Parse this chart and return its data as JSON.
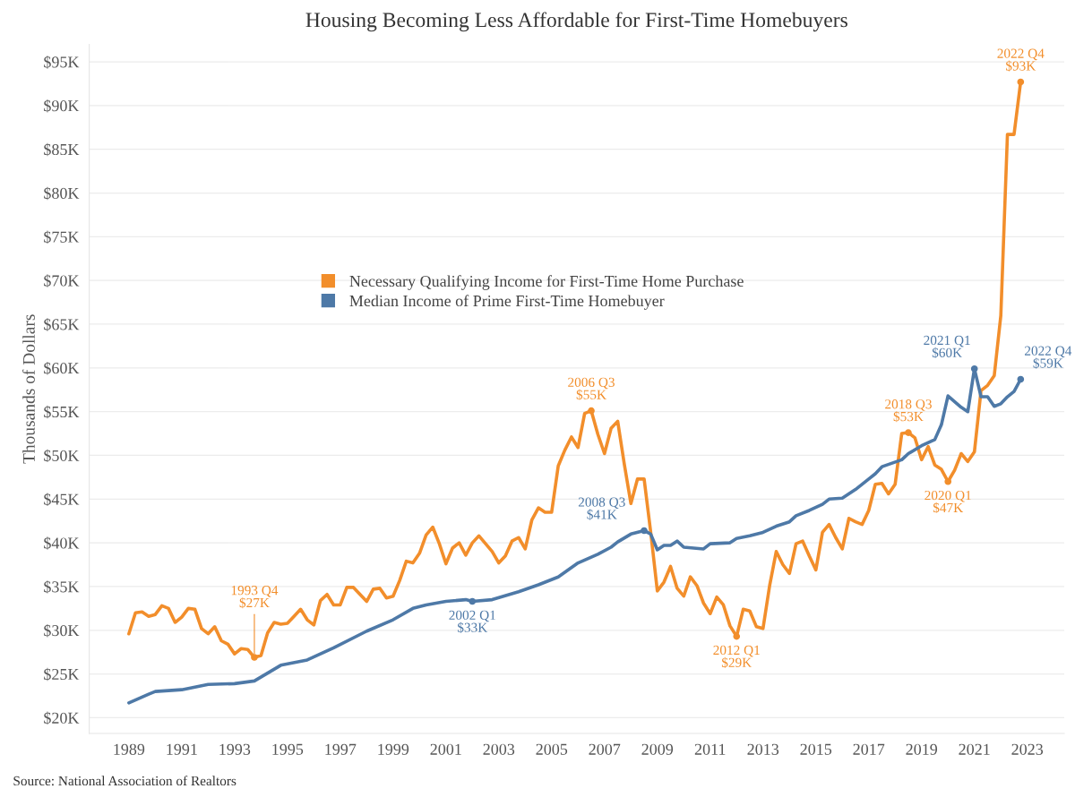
{
  "chart_data": {
    "type": "line",
    "title": "Housing Becoming Less Affordable for First-Time Homebuyers",
    "ylabel": "Thousands of Dollars",
    "series": [
      {
        "name": "Necessary Qualifying Income for First-Time Home Purchase",
        "color": "#f28e2b",
        "x": [
          1989,
          1989.25,
          1989.5,
          1989.75,
          1990,
          1990.25,
          1990.5,
          1990.75,
          1991,
          1991.25,
          1991.5,
          1991.75,
          1992,
          1992.25,
          1992.5,
          1992.75,
          1993,
          1993.25,
          1993.5,
          1993.75,
          1994,
          1994.25,
          1994.5,
          1994.75,
          1995,
          1995.25,
          1995.5,
          1995.75,
          1996,
          1996.25,
          1996.5,
          1996.75,
          1997,
          1997.25,
          1997.5,
          1997.75,
          1998,
          1998.25,
          1998.5,
          1998.75,
          1999,
          1999.25,
          1999.5,
          1999.75,
          2000,
          2000.25,
          2000.5,
          2000.75,
          2001,
          2001.25,
          2001.5,
          2001.75,
          2002,
          2002.25,
          2002.5,
          2002.75,
          2003,
          2003.25,
          2003.5,
          2003.75,
          2004,
          2004.25,
          2004.5,
          2004.75,
          2005,
          2005.25,
          2005.5,
          2005.75,
          2006,
          2006.25,
          2006.5,
          2006.75,
          2007,
          2007.25,
          2007.5,
          2007.75,
          2008,
          2008.25,
          2008.5,
          2008.75,
          2009,
          2009.25,
          2009.5,
          2009.75,
          2010,
          2010.25,
          2010.5,
          2010.75,
          2011,
          2011.25,
          2011.5,
          2011.75,
          2012,
          2012.25,
          2012.5,
          2012.75,
          2013,
          2013.25,
          2013.5,
          2013.75,
          2014,
          2014.25,
          2014.5,
          2014.75,
          2015,
          2015.25,
          2015.5,
          2015.75,
          2016,
          2016.25,
          2016.5,
          2016.75,
          2017,
          2017.25,
          2017.5,
          2017.75,
          2018,
          2018.25,
          2018.5,
          2018.75,
          2019,
          2019.25,
          2019.5,
          2019.75,
          2020,
          2020.25,
          2020.5,
          2020.75,
          2021,
          2021.25,
          2021.5,
          2021.75,
          2022,
          2022.25,
          2022.5,
          2022.75
        ],
        "values": [
          29.6,
          32.0,
          32.1,
          31.6,
          31.8,
          32.8,
          32.5,
          30.9,
          31.5,
          32.5,
          32.4,
          30.2,
          29.6,
          30.4,
          28.8,
          28.4,
          27.3,
          27.9,
          27.8,
          26.9,
          27.1,
          29.7,
          30.9,
          30.7,
          30.8,
          31.6,
          32.4,
          31.2,
          30.6,
          33.4,
          34.1,
          32.9,
          32.9,
          34.9,
          34.9,
          34.1,
          33.3,
          34.7,
          34.8,
          33.7,
          33.9,
          35.7,
          37.9,
          37.7,
          38.8,
          40.9,
          41.8,
          39.9,
          37.6,
          39.4,
          40.0,
          38.6,
          40.0,
          40.8,
          39.9,
          39.0,
          37.7,
          38.5,
          40.2,
          40.6,
          39.3,
          42.6,
          44.0,
          43.5,
          43.5,
          48.8,
          50.6,
          52.1,
          50.9,
          54.8,
          55.1,
          52.4,
          50.2,
          53.1,
          53.9,
          49.0,
          44.5,
          47.3,
          47.3,
          41.2,
          34.5,
          35.5,
          37.3,
          34.8,
          33.9,
          36.1,
          35.1,
          33.1,
          31.9,
          33.8,
          32.9,
          30.5,
          29.3,
          32.4,
          32.2,
          30.4,
          30.2,
          35.1,
          39.0,
          37.5,
          36.5,
          39.9,
          40.2,
          38.5,
          36.9,
          41.2,
          42.1,
          40.6,
          39.3,
          42.8,
          42.4,
          42.1,
          43.7,
          46.7,
          46.8,
          45.6,
          46.7,
          52.5,
          52.6,
          52.0,
          49.5,
          51.0,
          48.9,
          48.4,
          47.0,
          48.3,
          50.2,
          49.3,
          50.4,
          57.4,
          58.0,
          59.1,
          66.0,
          86.7,
          86.7,
          92.7
        ]
      },
      {
        "name": "Median Income of Prime First-Time Homebuyer",
        "color": "#4e79a7",
        "x": [
          1989,
          1989.75,
          1990,
          1991,
          1992,
          1993,
          1993.75,
          1994.75,
          1995.75,
          1996.75,
          1998,
          1999,
          1999.75,
          2000.25,
          2001,
          2001.75,
          2002,
          2002.75,
          2003.75,
          2004.5,
          2005.25,
          2006,
          2006.75,
          2007.25,
          2007.5,
          2008,
          2008.5,
          2008.75,
          2009,
          2009.25,
          2009.5,
          2009.75,
          2010,
          2010.75,
          2011,
          2011.75,
          2012,
          2012.5,
          2013,
          2013.5,
          2014,
          2014.25,
          2014.75,
          2015.25,
          2015.5,
          2016,
          2016.5,
          2017,
          2017.25,
          2017.5,
          2018.25,
          2018.5,
          2019,
          2019.5,
          2019.75,
          2020,
          2020.5,
          2020.75,
          2021,
          2021.25,
          2021.5,
          2021.75,
          2022,
          2022.25,
          2022.5,
          2022.75
        ],
        "values": [
          21.7,
          22.7,
          23.0,
          23.2,
          23.8,
          23.9,
          24.2,
          26.0,
          26.6,
          28.0,
          29.9,
          31.2,
          32.5,
          32.9,
          33.3,
          33.5,
          33.3,
          33.5,
          34.4,
          35.2,
          36.1,
          37.7,
          38.7,
          39.5,
          40.1,
          41.0,
          41.4,
          41.0,
          39.2,
          39.7,
          39.7,
          40.2,
          39.5,
          39.3,
          39.9,
          40.0,
          40.5,
          40.8,
          41.2,
          41.9,
          42.4,
          43.1,
          43.7,
          44.4,
          45.0,
          45.1,
          46.1,
          47.3,
          47.9,
          48.7,
          49.5,
          50.2,
          51.1,
          51.8,
          53.5,
          56.8,
          55.5,
          55.0,
          59.9,
          56.7,
          56.7,
          55.6,
          55.9,
          56.7,
          57.3,
          58.7
        ]
      }
    ],
    "xlim": [
      1987.5,
      2024.4
    ],
    "xticks": [
      1989,
      1991,
      1993,
      1995,
      1997,
      1999,
      2001,
      2003,
      2005,
      2007,
      2009,
      2011,
      2013,
      2015,
      2017,
      2019,
      2021,
      2023
    ],
    "ylim": [
      18.2,
      97
    ],
    "yticks": [
      {
        "value": 20,
        "label": "$20K"
      },
      {
        "value": 25,
        "label": "$25K"
      },
      {
        "value": 30,
        "label": "$30K"
      },
      {
        "value": 35,
        "label": "$35K"
      },
      {
        "value": 40,
        "label": "$40K"
      },
      {
        "value": 45,
        "label": "$45K"
      },
      {
        "value": 50,
        "label": "$50K"
      },
      {
        "value": 55,
        "label": "$55K"
      },
      {
        "value": 60,
        "label": "$60K"
      },
      {
        "value": 65,
        "label": "$65K"
      },
      {
        "value": 70,
        "label": "$70K"
      },
      {
        "value": 75,
        "label": "$75K"
      },
      {
        "value": 80,
        "label": "$80K"
      },
      {
        "value": 85,
        "label": "$85K"
      },
      {
        "value": 90,
        "label": "$90K"
      },
      {
        "value": 95,
        "label": "$95K"
      }
    ],
    "grid": "y",
    "legend": "center",
    "annotations": [
      {
        "text": "1993 Q4\n$27K",
        "x": 1993.75,
        "y": 26.9
      },
      {
        "text": "2002 Q1\n$33K",
        "x": 2002,
        "y": 33.3
      },
      {
        "text": "2006 Q3\n$55K",
        "x": 2006.5,
        "y": 55.1
      },
      {
        "text": "2008 Q3\n$41K",
        "x": 2008.5,
        "y": 41.4
      },
      {
        "text": "2012 Q1\n$29K",
        "x": 2012,
        "y": 29.3
      },
      {
        "text": "2018 Q3\n$53K",
        "x": 2018.5,
        "y": 52.6
      },
      {
        "text": "2020 Q1\n$47K",
        "x": 2020,
        "y": 47.0
      },
      {
        "text": "2021 Q1\n$60K",
        "x": 2021,
        "y": 59.9
      },
      {
        "text": "2022 Q4\n$93K",
        "x": 2022.75,
        "y": 92.7
      },
      {
        "text": "2022 Q4\n$59K",
        "x": 2022.75,
        "y": 58.7
      },
      "Source: National Association of Realtors"
    ]
  }
}
